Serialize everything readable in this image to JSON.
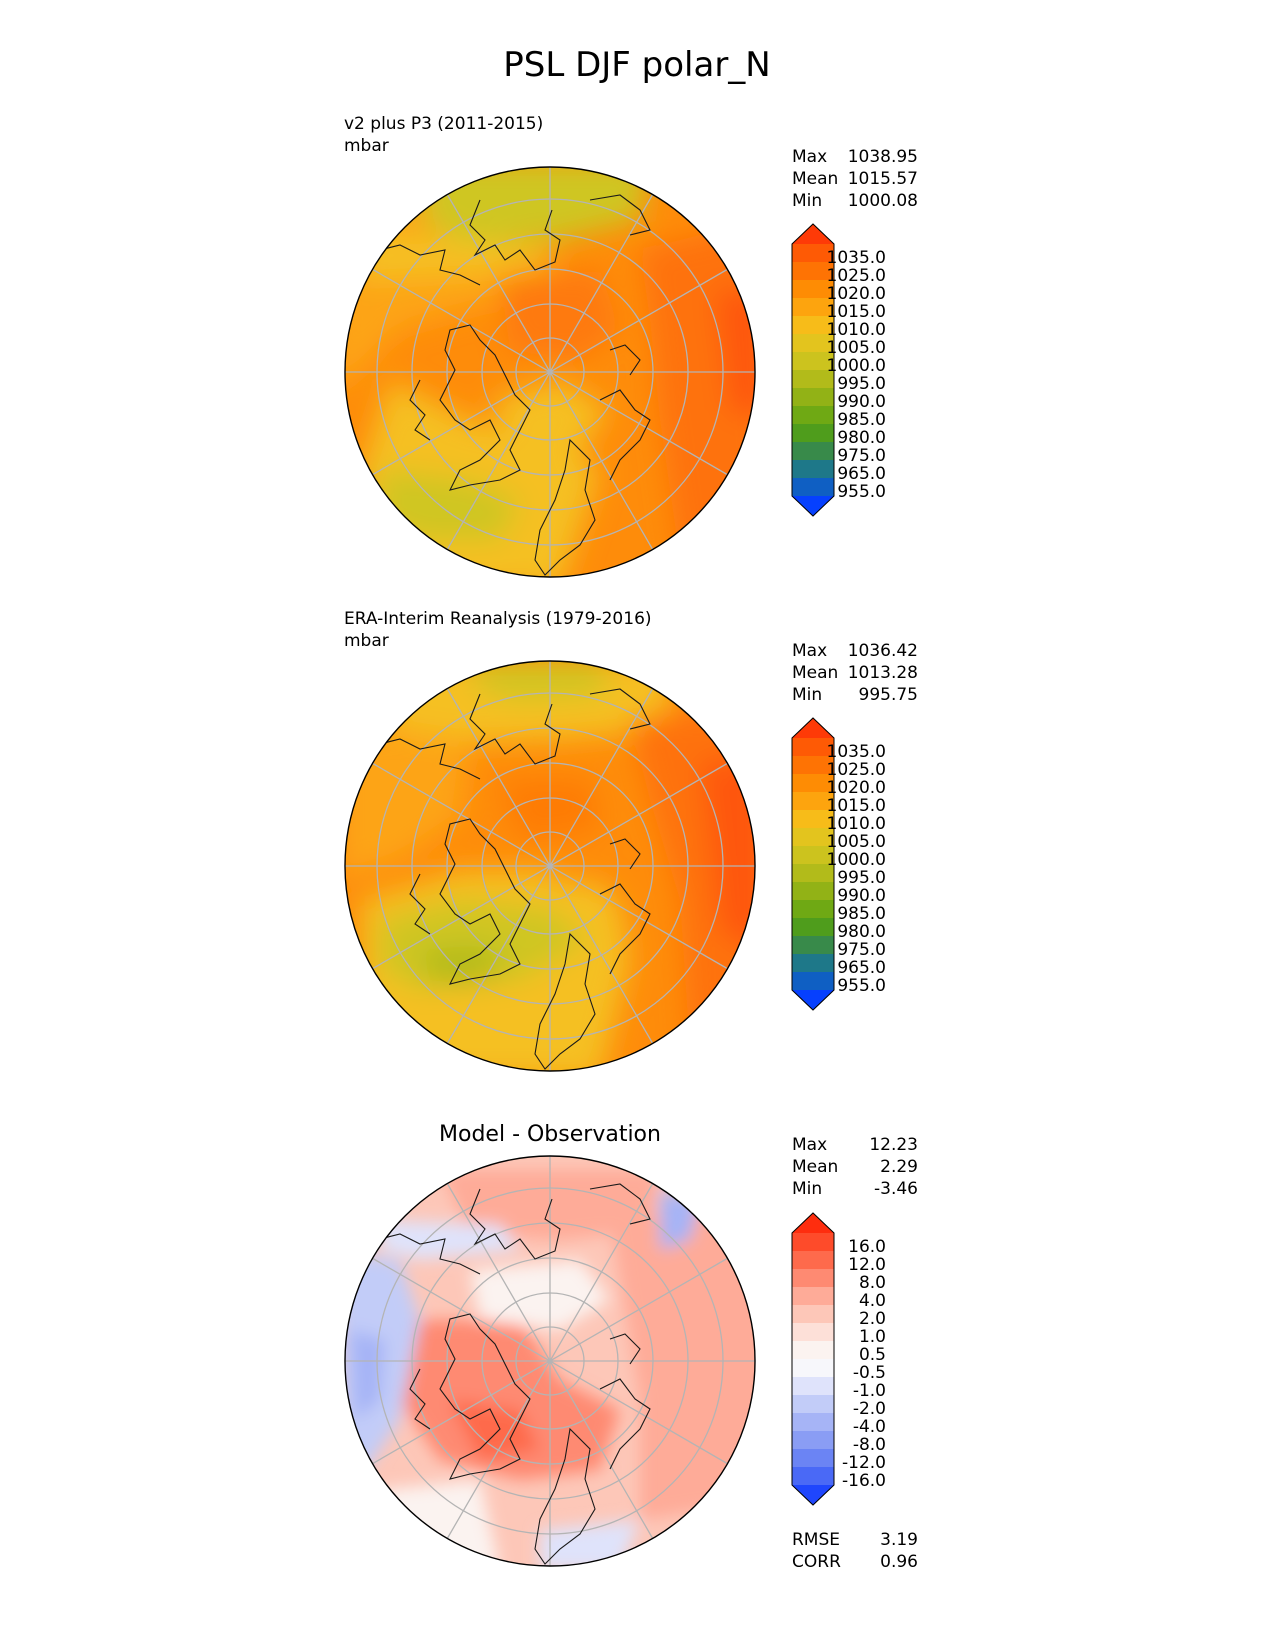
{
  "figure": {
    "title": "PSL DJF polar_N"
  },
  "panels": [
    {
      "id": "test",
      "title_line1": "v2 plus P3 (2011-2015)",
      "title_line2": "mbar",
      "centered_title": "",
      "stats": [
        {
          "label": "Max",
          "value": "1038.95"
        },
        {
          "label": "Mean",
          "value": "1015.57"
        },
        {
          "label": "Min",
          "value": "1000.08"
        }
      ],
      "colorbar": {
        "labels": [
          "1035.0",
          "1025.0",
          "1020.0",
          "1015.0",
          "1010.0",
          "1005.0",
          "1000.0",
          "995.0",
          "990.0",
          "985.0",
          "980.0",
          "975.0",
          "965.0",
          "955.0"
        ],
        "colors": [
          "#fe3a07",
          "#fe5a05",
          "#fe7304",
          "#fe8c04",
          "#fda40e",
          "#f7bc19",
          "#e3c41e",
          "#ccc31e",
          "#b2bb1a",
          "#92b216",
          "#6fa914",
          "#4f9d1c",
          "#388a4a",
          "#1e7889",
          "#0f5fc3",
          "#0640fe"
        ]
      },
      "colors_used": [
        "#cfc624",
        "#f5c020",
        "#fda412",
        "#fe8c0a",
        "#fe720a",
        "#fe560a"
      ]
    },
    {
      "id": "reference",
      "title_line1": "ERA-Interim Reanalysis (1979-2016)",
      "title_line2": "mbar",
      "centered_title": "",
      "stats": [
        {
          "label": "Max",
          "value": "1036.42"
        },
        {
          "label": "Mean",
          "value": "1013.28"
        },
        {
          "label": "Min",
          "value": "995.75"
        }
      ],
      "colorbar": {
        "labels": [
          "1035.0",
          "1025.0",
          "1020.0",
          "1015.0",
          "1010.0",
          "1005.0",
          "1000.0",
          "995.0",
          "990.0",
          "985.0",
          "980.0",
          "975.0",
          "965.0",
          "955.0"
        ],
        "colors": [
          "#fe3a07",
          "#fe5a05",
          "#fe7304",
          "#fe8c04",
          "#fda40e",
          "#f7bc19",
          "#e3c41e",
          "#ccc31e",
          "#b2bb1a",
          "#92b216",
          "#6fa914",
          "#4f9d1c",
          "#388a4a",
          "#1e7889",
          "#0f5fc3",
          "#0640fe"
        ]
      },
      "colors_used": [
        "#b3bb1c",
        "#cfc624",
        "#f5c020",
        "#fda412",
        "#fe8c0a",
        "#fe720a",
        "#fe560a"
      ]
    },
    {
      "id": "difference",
      "title_line1": "",
      "title_line2": "",
      "centered_title": "Model - Observation",
      "stats": [
        {
          "label": "Max",
          "value": "12.23"
        },
        {
          "label": "Mean",
          "value": "2.29"
        },
        {
          "label": "Min",
          "value": "-3.46"
        }
      ],
      "colorbar": {
        "labels": [
          "16.0",
          "12.0",
          "8.0",
          "4.0",
          "2.0",
          "1.0",
          "0.5",
          "-0.5",
          "-1.0",
          "-2.0",
          "-4.0",
          "-8.0",
          "-12.0",
          "-16.0"
        ],
        "colors": [
          "#fe2d0e",
          "#fe4b2a",
          "#fe6a4c",
          "#fe8a72",
          "#feab98",
          "#fdc7b8",
          "#fde0d8",
          "#fbf3f0",
          "#f7f7fb",
          "#dfe3fb",
          "#c2ccf8",
          "#a6b4f6",
          "#8a9df4",
          "#6b84f4",
          "#4a69f6",
          "#1f46fd"
        ]
      },
      "footer_stats": [
        {
          "label": "RMSE",
          "value": "3.19"
        },
        {
          "label": "CORR",
          "value": "0.96"
        }
      ]
    }
  ],
  "chart_data": {
    "type": "heatmap",
    "title": "PSL DJF polar_N",
    "projection": "north polar stereographic",
    "maps": [
      {
        "name": "v2 plus P3 (2011-2015)",
        "units": "mbar",
        "max": 1038.95,
        "mean": 1015.57,
        "min": 1000.08,
        "levels": [
          955,
          965,
          975,
          980,
          985,
          990,
          995,
          1000,
          1005,
          1010,
          1015,
          1020,
          1025,
          1035
        ]
      },
      {
        "name": "ERA-Interim Reanalysis (1979-2016)",
        "units": "mbar",
        "max": 1036.42,
        "mean": 1013.28,
        "min": 995.75,
        "levels": [
          955,
          965,
          975,
          980,
          985,
          990,
          995,
          1000,
          1005,
          1010,
          1015,
          1020,
          1025,
          1035
        ]
      },
      {
        "name": "Model - Observation",
        "max": 12.23,
        "mean": 2.29,
        "min": -3.46,
        "rmse": 3.19,
        "corr": 0.96,
        "levels": [
          -16,
          -12,
          -8,
          -4,
          -2,
          -1,
          -0.5,
          0.5,
          1,
          2,
          4,
          8,
          12,
          16
        ]
      }
    ],
    "grid": true
  }
}
